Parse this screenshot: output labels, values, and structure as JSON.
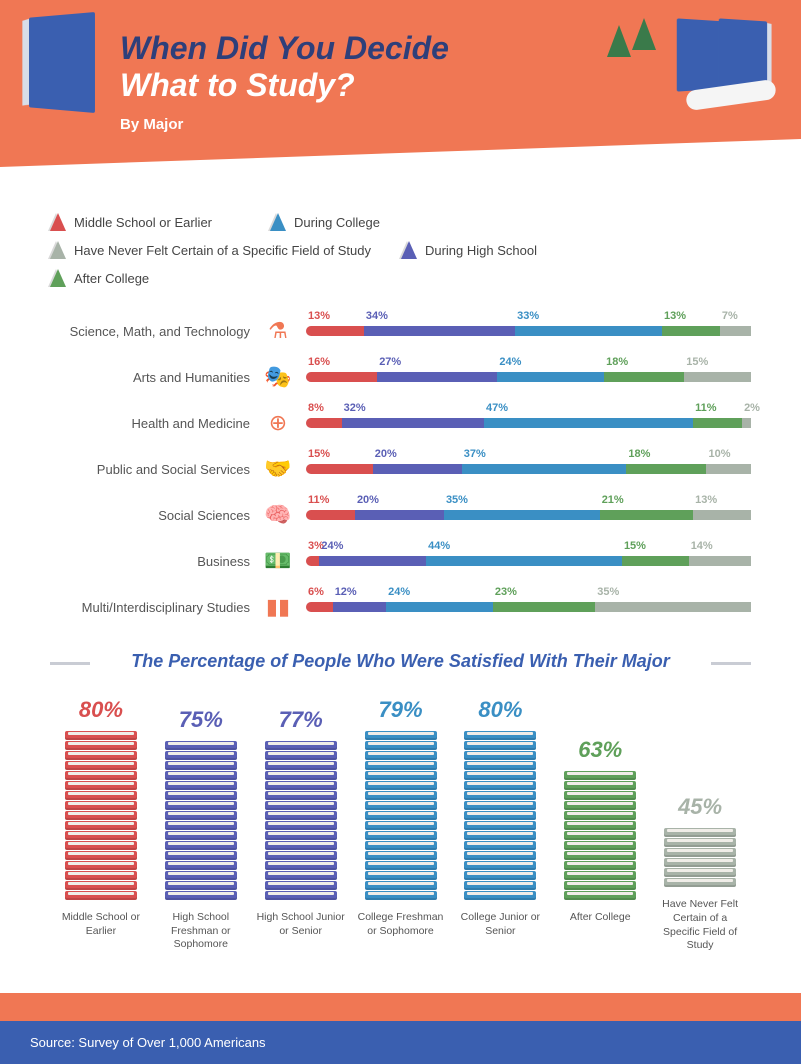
{
  "colors": {
    "red": "#d94f4f",
    "purple": "#5a5fb5",
    "blue": "#3a8fc4",
    "green": "#5fa05a",
    "grey": "#a8b3a8",
    "header_bg": "#f07754",
    "title_dark": "#2e3f7a"
  },
  "header": {
    "title_line1": "When Did You Decide",
    "title_line2": "What to Study?",
    "subtitle": "By Major"
  },
  "legend": [
    {
      "label": "Middle School or Earlier",
      "color": "#d94f4f"
    },
    {
      "label": "During College",
      "color": "#3a8fc4"
    },
    {
      "label": "Have Never Felt Certain of a Specific Field of Study",
      "color": "#a8b3a8"
    },
    {
      "label": "During High School",
      "color": "#5a5fb5"
    },
    {
      "label": "After College",
      "color": "#5fa05a"
    }
  ],
  "majors": [
    {
      "label": "Science, Math, and Technology",
      "icon": "⚗",
      "values": [
        13,
        34,
        33,
        13,
        7
      ]
    },
    {
      "label": "Arts and Humanities",
      "icon": "🎭",
      "values": [
        16,
        27,
        24,
        18,
        15
      ]
    },
    {
      "label": "Health and Medicine",
      "icon": "⊕",
      "values": [
        8,
        32,
        47,
        11,
        2
      ]
    },
    {
      "label": "Public and Social Services",
      "icon": "🤝",
      "values": [
        15,
        20,
        37,
        18,
        10
      ]
    },
    {
      "label": "Social Sciences",
      "icon": "🧠",
      "values": [
        11,
        20,
        35,
        21,
        13
      ]
    },
    {
      "label": "Business",
      "icon": "💵",
      "values": [
        3,
        24,
        44,
        15,
        14
      ]
    },
    {
      "label": "Multi/Interdisciplinary Studies",
      "icon": "▮▮",
      "values": [
        6,
        12,
        24,
        23,
        35
      ]
    }
  ],
  "bar_colors": [
    "#d94f4f",
    "#5a5fb5",
    "#3a8fc4",
    "#5fa05a",
    "#a8b3a8"
  ],
  "section2_title": "The Percentage of People Who Were Satisfied With Their Major",
  "stacks": [
    {
      "label": "Middle School or Earlier",
      "pct": 80,
      "color": "#d94f4f",
      "books": 17
    },
    {
      "label": "High School Freshman or Sophomore",
      "pct": 75,
      "color": "#5a5fb5",
      "books": 16
    },
    {
      "label": "High School Junior or Senior",
      "pct": 77,
      "color": "#5a5fb5",
      "books": 16
    },
    {
      "label": "College Freshman or Sophomore",
      "pct": 79,
      "color": "#3a8fc4",
      "books": 17
    },
    {
      "label": "College Junior or Senior",
      "pct": 80,
      "color": "#3a8fc4",
      "books": 17
    },
    {
      "label": "After College",
      "pct": 63,
      "color": "#5fa05a",
      "books": 13
    },
    {
      "label": "Have Never Felt Certain of a Specific Field of Study",
      "pct": 45,
      "color": "#a8b3a8",
      "books": 6
    }
  ],
  "source": "Source: Survey of Over 1,000 Americans"
}
